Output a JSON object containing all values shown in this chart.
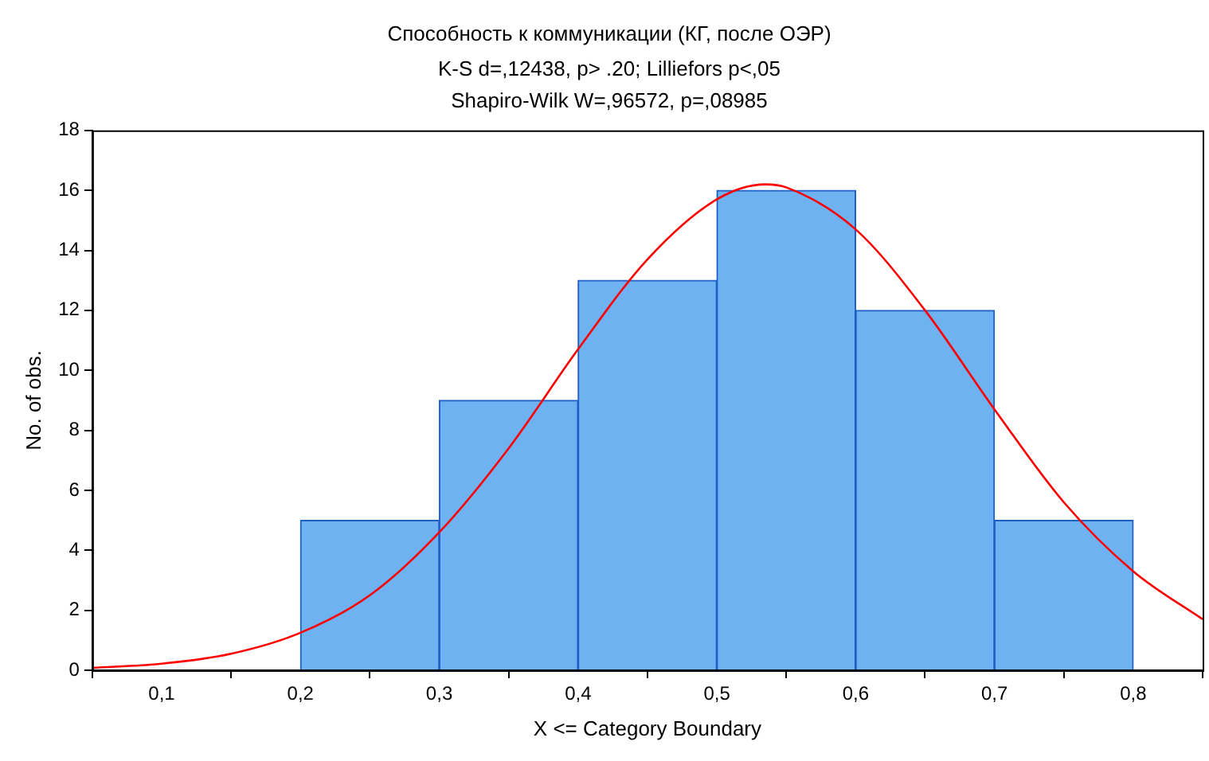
{
  "chart_data": {
    "type": "histogram",
    "title": "Способность к коммуникации (КГ, после ОЭР)",
    "subtitle": "K-S d=,12438, p> .20; Lilliefors p<,05\nShapiro-Wilk W=,96572, p=,08985",
    "xlabel": "X <= Category Boundary",
    "ylabel": "No. of obs.",
    "bins": [
      0.1,
      0.2,
      0.3,
      0.4,
      0.5,
      0.6,
      0.7,
      0.8
    ],
    "values": [
      0,
      5,
      9,
      13,
      16,
      12,
      5
    ],
    "color": "#6fb2f2",
    "series": [
      {
        "type": "line",
        "color": "#ff0000",
        "x": [
          0.05,
          0.1,
          0.15,
          0.2,
          0.25,
          0.3,
          0.35,
          0.4,
          0.45,
          0.5,
          0.535,
          0.55,
          0.6,
          0.65,
          0.7,
          0.75,
          0.8,
          0.85
        ],
        "values": [
          0.08,
          0.22,
          0.55,
          1.25,
          2.5,
          4.6,
          7.4,
          10.7,
          13.7,
          15.7,
          16.2,
          16.1,
          14.7,
          12.0,
          8.7,
          5.6,
          3.3,
          1.7
        ]
      }
    ],
    "xlim": [
      0.05,
      0.85
    ],
    "xticks": [
      {
        "value": 0.1,
        "label": "0,1"
      },
      {
        "value": 0.2,
        "label": "0,2"
      },
      {
        "value": 0.3,
        "label": "0,3"
      },
      {
        "value": 0.4,
        "label": "0,4"
      },
      {
        "value": 0.5,
        "label": "0,5"
      },
      {
        "value": 0.6,
        "label": "0,6"
      },
      {
        "value": 0.7,
        "label": "0,7"
      },
      {
        "value": 0.8,
        "label": "0,8"
      }
    ],
    "ylim": [
      0,
      18
    ],
    "yticks": [
      0,
      2,
      4,
      6,
      8,
      10,
      12,
      14,
      16,
      18
    ],
    "grid": false,
    "legend": false
  }
}
